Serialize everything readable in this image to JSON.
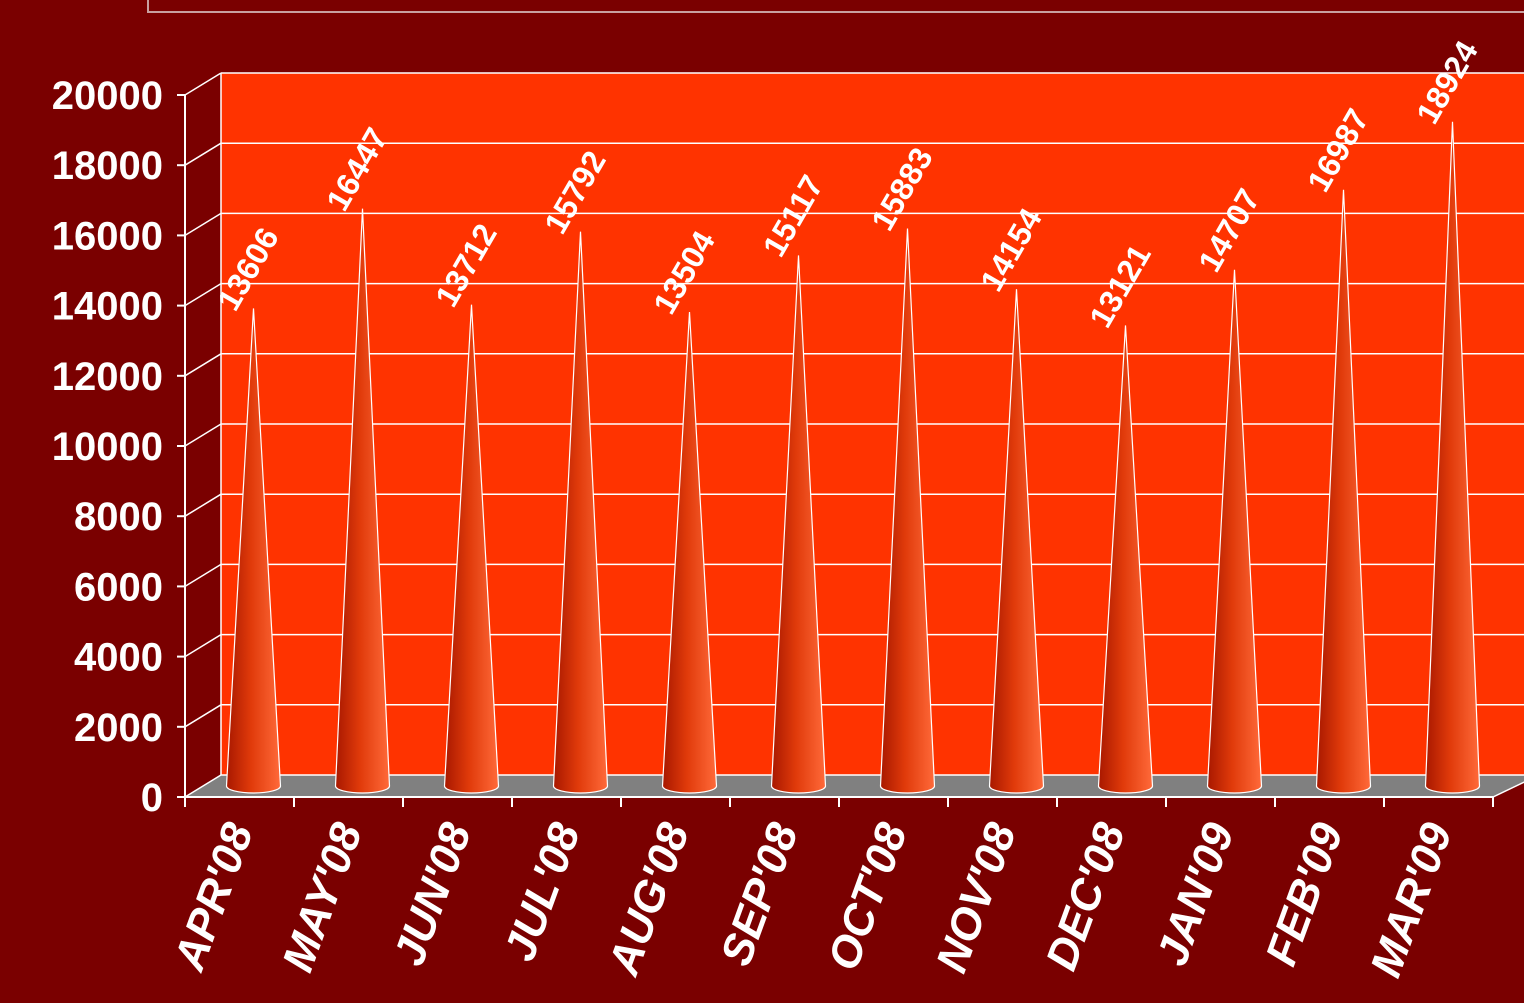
{
  "colors": {
    "background": "#7a0000",
    "plot_wall": "#ff3300",
    "floor": "#808080",
    "grid": "#ffffff",
    "text": "#ffffff",
    "cone_dark": "#a81800",
    "cone_mid": "#e03a0a",
    "cone_light": "#ff6a3a"
  },
  "chart_data": {
    "type": "bar",
    "bar_shape": "3d-cone",
    "categories": [
      "APR'08",
      "MAY'08",
      "JUN'08",
      "JUL'08",
      "AUG'08",
      "SEP'08",
      "OCT'08",
      "NOV'08",
      "DEC'08",
      "JAN'09",
      "FEB'09",
      "MAR'09"
    ],
    "values": [
      13606,
      16447,
      13712,
      15792,
      13504,
      15117,
      15883,
      14154,
      13121,
      14707,
      16987,
      18924
    ],
    "value_labels": [
      "13606",
      "16447",
      "13712",
      "15792",
      "13504",
      "15117",
      "15883",
      "14154",
      "13121",
      "14707",
      "16987",
      "18924"
    ],
    "title": "",
    "xlabel": "",
    "ylabel": "",
    "ylim": [
      0,
      20000
    ],
    "yticks": [
      0,
      2000,
      4000,
      6000,
      8000,
      10000,
      12000,
      14000,
      16000,
      18000,
      20000
    ],
    "ytick_labels": [
      "0",
      "2000",
      "4000",
      "6000",
      "8000",
      "10000",
      "12000",
      "14000",
      "16000",
      "18000",
      "20000"
    ],
    "grid": true,
    "legend": "none"
  }
}
